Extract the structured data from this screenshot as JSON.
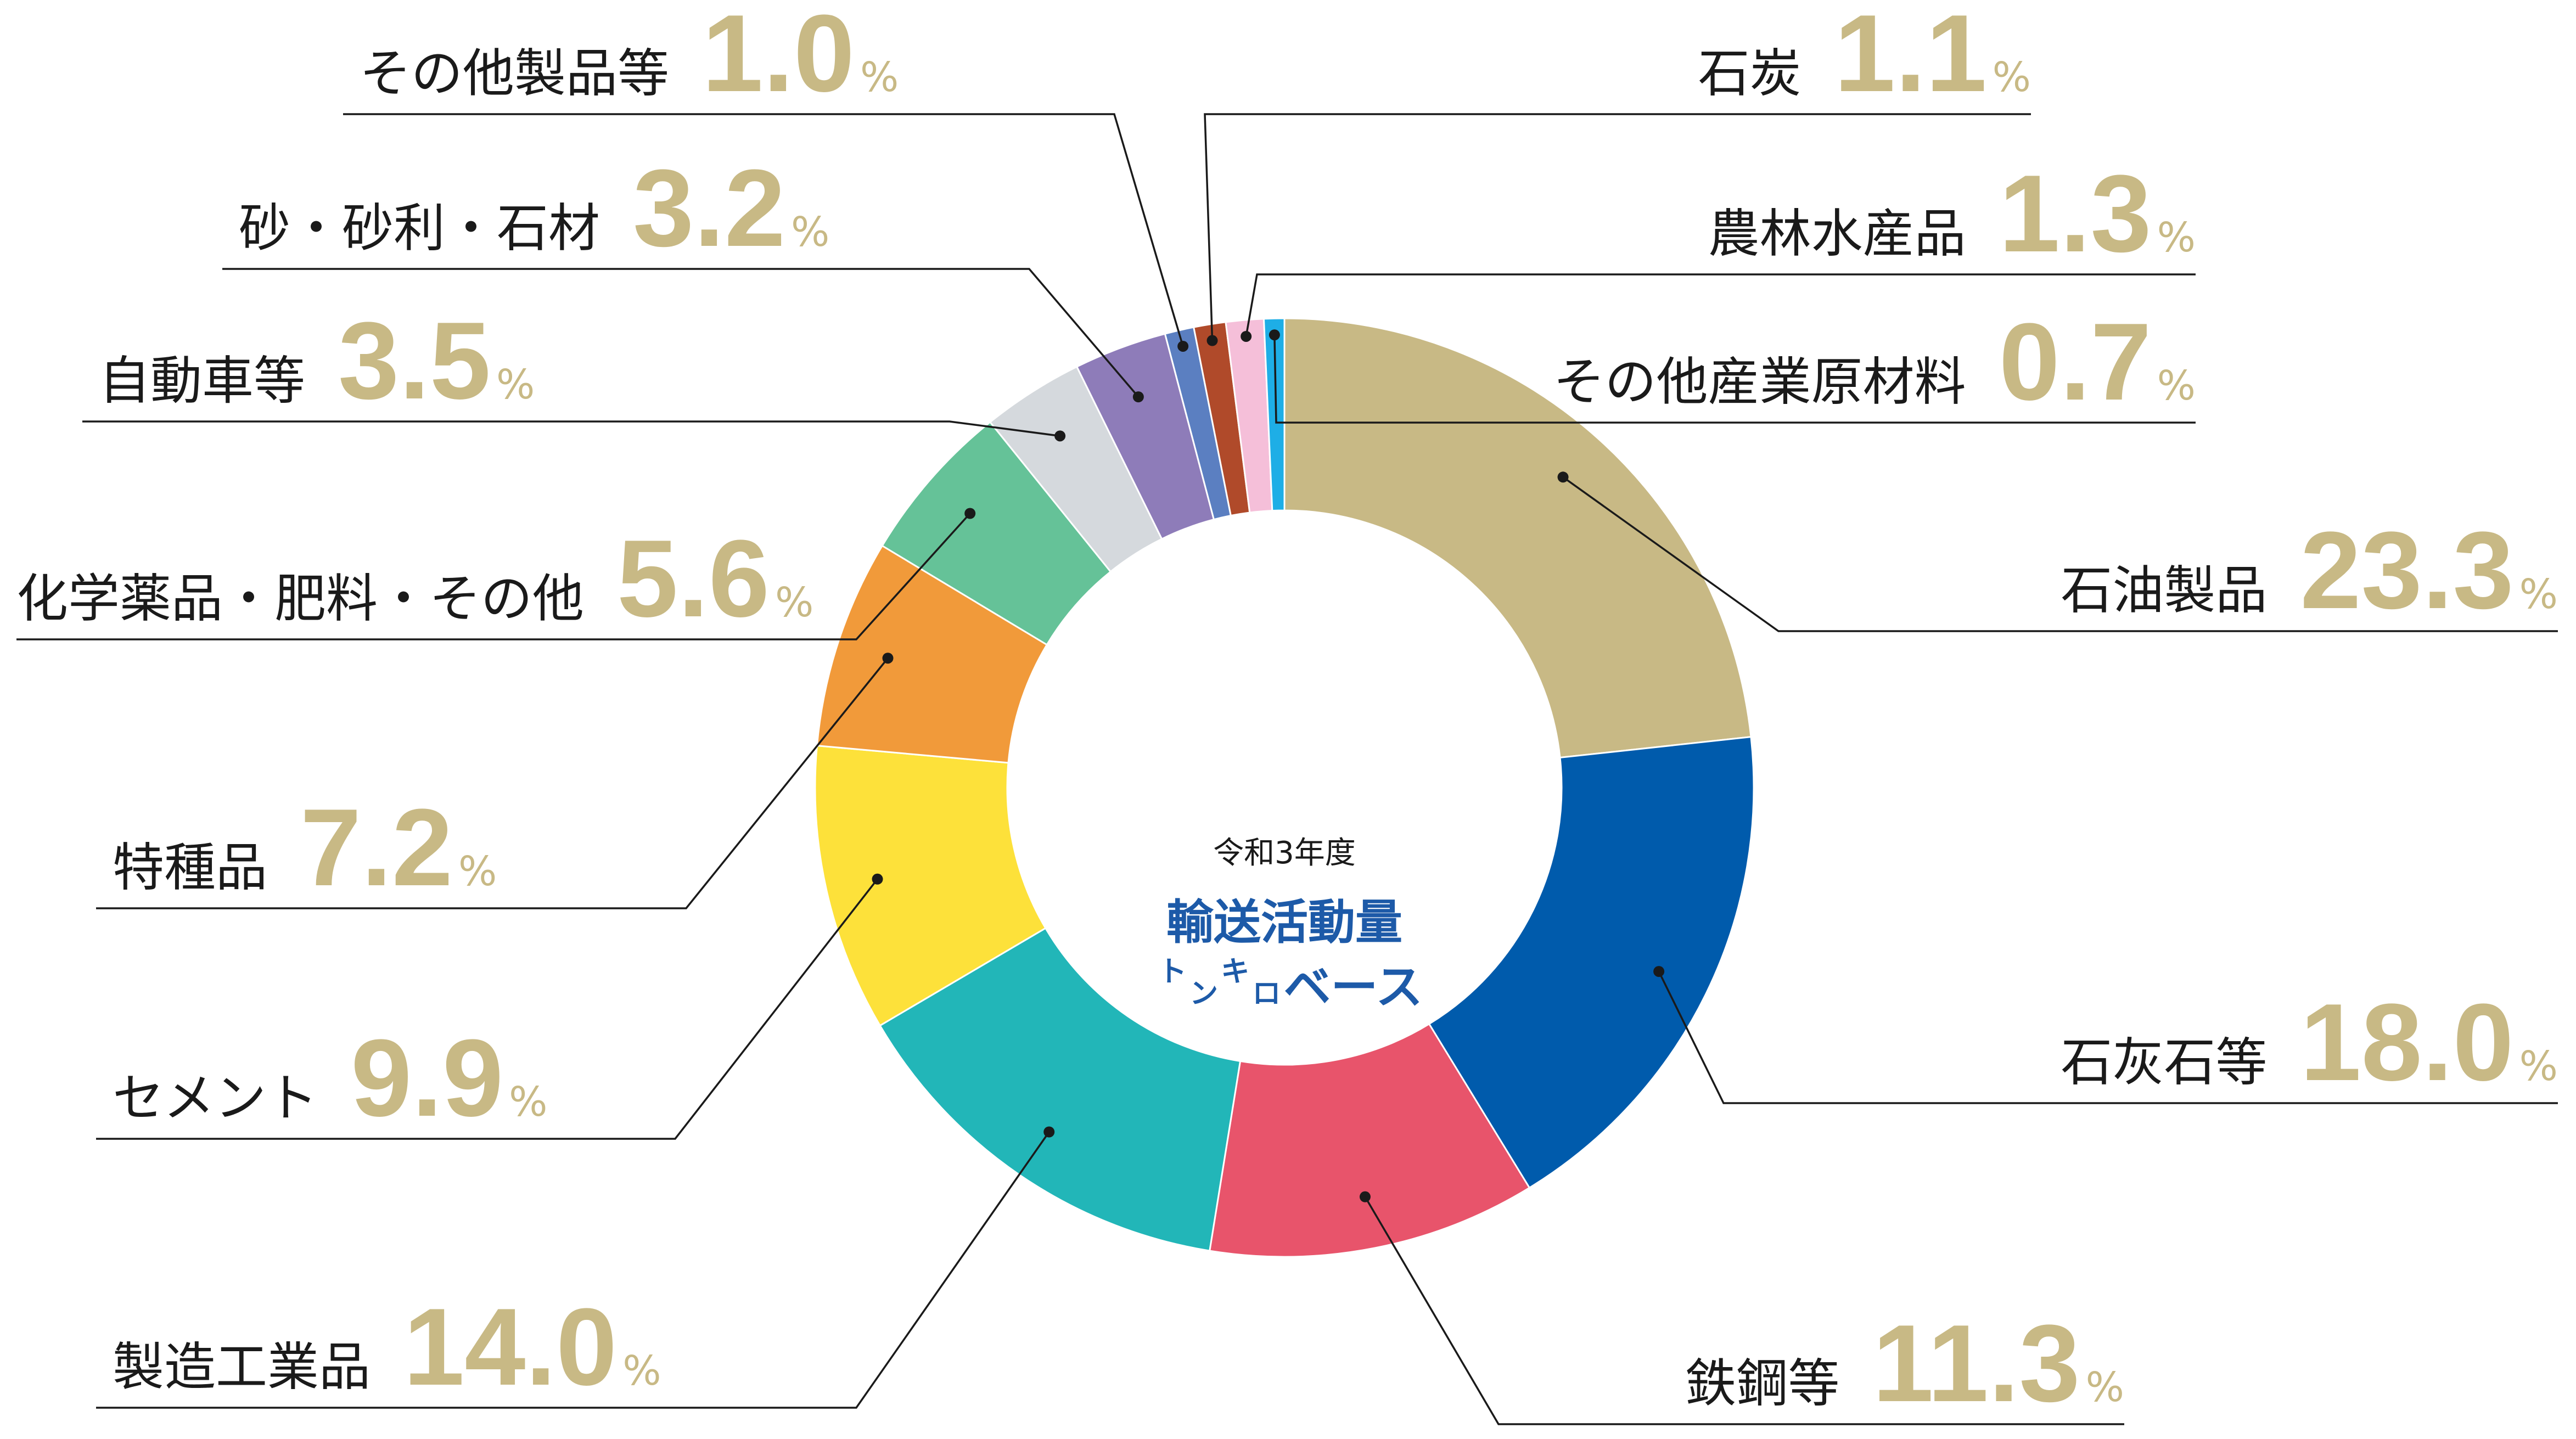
{
  "chart_data": {
    "type": "pie",
    "center_label": {
      "year": "令和3年度",
      "title": "輸送活動量",
      "unit_small1": "ト",
      "unit_small2": "ン",
      "unit_small3": "キ",
      "unit_small4": "ロ",
      "basis": "ベース"
    },
    "percent_sign": "%",
    "slices": [
      {
        "label": "石油製品",
        "value": 23.3,
        "display": "23.3",
        "color": "#c8b985"
      },
      {
        "label": "石灰石等",
        "value": 18.0,
        "display": "18.0",
        "color": "#005bac"
      },
      {
        "label": "鉄鋼等",
        "value": 11.3,
        "display": "11.3",
        "color": "#e8546b"
      },
      {
        "label": "製造工業品",
        "value": 14.0,
        "display": "14.0",
        "color": "#22b6b8"
      },
      {
        "label": "セメント",
        "value": 9.9,
        "display": "9.9",
        "color": "#fde13a"
      },
      {
        "label": "特種品",
        "value": 7.2,
        "display": "7.2",
        "color": "#f19a3a"
      },
      {
        "label": "化学薬品・肥料・その他",
        "value": 5.6,
        "display": "5.6",
        "color": "#65c298"
      },
      {
        "label": "自動車等",
        "value": 3.5,
        "display": "3.5",
        "color": "#d5d9dd"
      },
      {
        "label": "砂・砂利・石材",
        "value": 3.2,
        "display": "3.2",
        "color": "#8e7cb9"
      },
      {
        "label": "その他製品等",
        "value": 1.0,
        "display": "1.0",
        "color": "#5b7fc1"
      },
      {
        "label": "石炭",
        "value": 1.1,
        "display": "1.1",
        "color": "#b04a2a"
      },
      {
        "label": "農林水産品",
        "value": 1.3,
        "display": "1.3",
        "color": "#f5bfd9"
      },
      {
        "label": "その他産業原材料",
        "value": 0.7,
        "display": "0.7",
        "color": "#1eaee6"
      }
    ]
  }
}
